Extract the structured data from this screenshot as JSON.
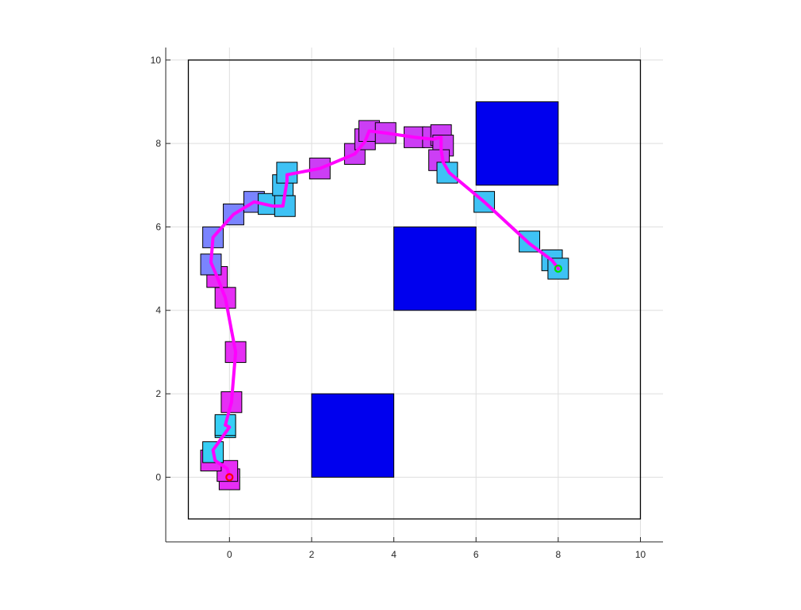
{
  "chart_data": {
    "type": "scatter",
    "title": "",
    "xlabel": "",
    "ylabel": "",
    "xlim": [
      -1.55,
      10.55
    ],
    "ylim": [
      -1.55,
      10.3
    ],
    "xticks": [
      0,
      2,
      4,
      6,
      8,
      10
    ],
    "yticks": [
      0,
      2,
      4,
      6,
      8,
      10
    ],
    "xtick_labels": [
      "0",
      "2",
      "4",
      "6",
      "8",
      "10"
    ],
    "ytick_labels": [
      "0",
      "2",
      "4",
      "6",
      "8",
      "10"
    ],
    "grid": true,
    "workspace_boundary": {
      "x": [
        -1,
        10
      ],
      "y": [
        -1,
        10
      ]
    },
    "obstacles": [
      {
        "x0": 2,
        "y0": 0,
        "x1": 4,
        "y1": 2
      },
      {
        "x0": 4,
        "y0": 4,
        "x1": 6,
        "y1": 6
      },
      {
        "x0": 6,
        "y0": 7,
        "x1": 8,
        "y1": 9
      }
    ],
    "obstacle_color": "#0000ee",
    "path": [
      [
        0.0,
        0.0
      ],
      [
        -0.05,
        0.2
      ],
      [
        -0.35,
        0.4
      ],
      [
        -0.4,
        0.65
      ],
      [
        0.0,
        1.2
      ],
      [
        -0.1,
        1.25
      ],
      [
        0.05,
        1.8
      ],
      [
        0.15,
        3.0
      ],
      [
        -0.1,
        4.3
      ],
      [
        -0.3,
        4.8
      ],
      [
        -0.45,
        5.15
      ],
      [
        -0.4,
        5.75
      ],
      [
        0.1,
        6.3
      ],
      [
        0.6,
        6.6
      ],
      [
        1.05,
        6.5
      ],
      [
        1.3,
        6.5
      ],
      [
        1.4,
        7.1
      ],
      [
        1.4,
        7.25
      ],
      [
        2.2,
        7.4
      ],
      [
        3.05,
        7.75
      ],
      [
        3.3,
        8.05
      ],
      [
        3.4,
        8.3
      ],
      [
        3.8,
        8.25
      ],
      [
        4.5,
        8.15
      ],
      [
        4.95,
        8.1
      ],
      [
        5.15,
        8.15
      ],
      [
        5.15,
        7.85
      ],
      [
        5.2,
        7.55
      ],
      [
        5.35,
        7.3
      ],
      [
        6.2,
        6.6
      ],
      [
        7.3,
        5.6
      ],
      [
        7.85,
        5.2
      ],
      [
        8.0,
        5.0
      ]
    ],
    "path_color": "#ff00ff",
    "robot_poses": [
      {
        "x": 0.0,
        "y": -0.05,
        "color": "#e62ef5"
      },
      {
        "x": -0.05,
        "y": 0.15,
        "color": "#e62ef5"
      },
      {
        "x": -0.45,
        "y": 0.4,
        "color": "#e62ef5"
      },
      {
        "x": -0.4,
        "y": 0.6,
        "color": "#36cff5"
      },
      {
        "x": -0.1,
        "y": 1.2,
        "color": "#36cff5"
      },
      {
        "x": -0.1,
        "y": 1.25,
        "color": "#36cff5"
      },
      {
        "x": 0.05,
        "y": 1.8,
        "color": "#e62ef5"
      },
      {
        "x": 0.15,
        "y": 3.0,
        "color": "#e62ef5"
      },
      {
        "x": -0.1,
        "y": 4.3,
        "color": "#e62ef5"
      },
      {
        "x": -0.3,
        "y": 4.8,
        "color": "#e62ef5"
      },
      {
        "x": -0.45,
        "y": 5.1,
        "color": "#7a84ff"
      },
      {
        "x": -0.4,
        "y": 5.75,
        "color": "#7a84ff"
      },
      {
        "x": 0.1,
        "y": 6.3,
        "color": "#7a84ff"
      },
      {
        "x": 0.6,
        "y": 6.6,
        "color": "#7a84ff"
      },
      {
        "x": 0.95,
        "y": 6.55,
        "color": "#3ec2f5"
      },
      {
        "x": 1.35,
        "y": 6.5,
        "color": "#3ec2f5"
      },
      {
        "x": 1.3,
        "y": 7.0,
        "color": "#3ec2f5"
      },
      {
        "x": 1.4,
        "y": 7.3,
        "color": "#3ec2f5"
      },
      {
        "x": 2.2,
        "y": 7.4,
        "color": "#cc3ef5"
      },
      {
        "x": 3.05,
        "y": 7.75,
        "color": "#cc3ef5"
      },
      {
        "x": 3.3,
        "y": 8.1,
        "color": "#cc3ef5"
      },
      {
        "x": 3.4,
        "y": 8.3,
        "color": "#cc3ef5"
      },
      {
        "x": 3.8,
        "y": 8.25,
        "color": "#cc3ef5"
      },
      {
        "x": 4.5,
        "y": 8.15,
        "color": "#cc3ef5"
      },
      {
        "x": 4.95,
        "y": 8.15,
        "color": "#cc3ef5"
      },
      {
        "x": 5.15,
        "y": 8.2,
        "color": "#cc3ef5"
      },
      {
        "x": 5.2,
        "y": 7.95,
        "color": "#cc3ef5"
      },
      {
        "x": 5.1,
        "y": 7.6,
        "color": "#cc3ef5"
      },
      {
        "x": 5.3,
        "y": 7.3,
        "color": "#3ec2f5"
      },
      {
        "x": 6.2,
        "y": 6.6,
        "color": "#3ec2f5"
      },
      {
        "x": 7.3,
        "y": 5.65,
        "color": "#3ec2f5"
      },
      {
        "x": 7.85,
        "y": 5.2,
        "color": "#3ec2f5"
      },
      {
        "x": 8.0,
        "y": 5.0,
        "color": "#3ec2f5"
      }
    ],
    "robot_size": 0.5,
    "start": {
      "x": 0,
      "y": 0,
      "color": "#ff0000"
    },
    "goal": {
      "x": 8,
      "y": 5,
      "color": "#00dd00"
    }
  }
}
